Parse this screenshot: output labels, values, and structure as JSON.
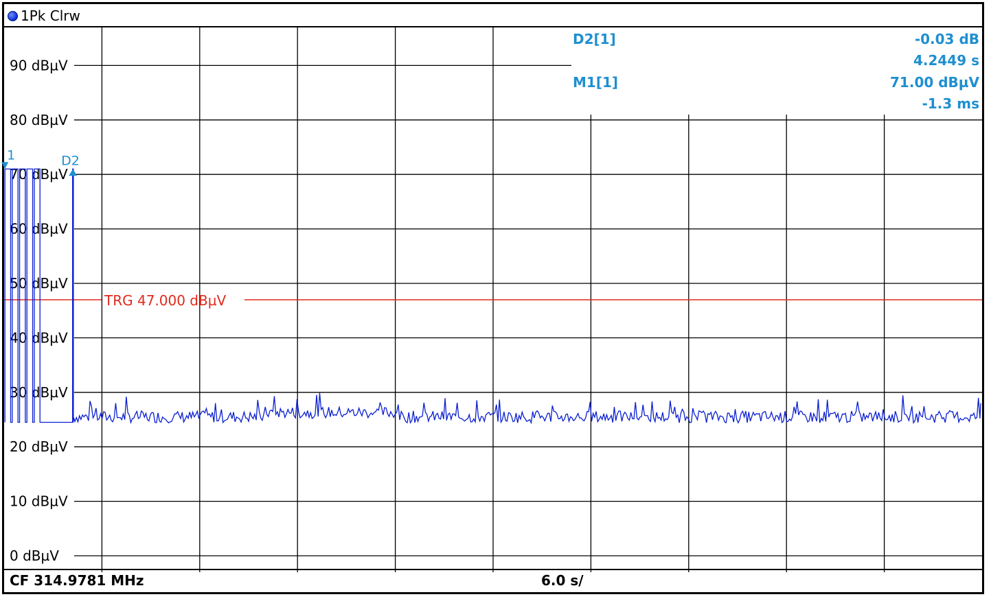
{
  "header": {
    "trace_label": "1Pk Clrw"
  },
  "footer": {
    "center_frequency": "CF 314.9781 MHz",
    "time_per_div": "6.0 s/"
  },
  "colors": {
    "trace": "#0a1fd0",
    "marker": "#1f8fd0",
    "trigger": "#e02a1c",
    "grid": "#000000"
  },
  "markers": {
    "d2_label": "D2[1]",
    "d2_value": "-0.03 dB",
    "d2_time": "4.2449 s",
    "m1_label": "M1[1]",
    "m1_value": "71.00 dBµV",
    "m1_time": "-1.3 ms",
    "m1_flag": "1",
    "d2_flag": "D2"
  },
  "trigger": {
    "label": "TRG",
    "value": "47.000 dBµV",
    "level": 47
  },
  "chart_data": {
    "type": "line",
    "x_unit": "s",
    "x_range": [
      0,
      60
    ],
    "ylim": [
      0,
      100
    ],
    "y_ticks": [
      "0 dBµV",
      "10 dBµV",
      "20 dBµV",
      "30 dBµV",
      "40 dBµV",
      "50 dBµV",
      "60 dBµV",
      "70 dBµV",
      "80 dBµV",
      "90 dBµV"
    ],
    "y_tick_values": [
      0,
      10,
      20,
      30,
      40,
      50,
      60,
      70,
      80,
      90
    ],
    "grid": true,
    "burst_pulses": [
      {
        "x_start": 0.05,
        "x_end": 0.4
      },
      {
        "x_start": 0.5,
        "x_end": 0.85
      },
      {
        "x_start": 0.95,
        "x_end": 1.3
      },
      {
        "x_start": 1.4,
        "x_end": 1.75
      },
      {
        "x_start": 1.85,
        "x_end": 2.2
      },
      {
        "x_start": 4.2,
        "x_end": 4.25
      }
    ],
    "burst_level": 71.0,
    "noise_floor": 25.5
  }
}
